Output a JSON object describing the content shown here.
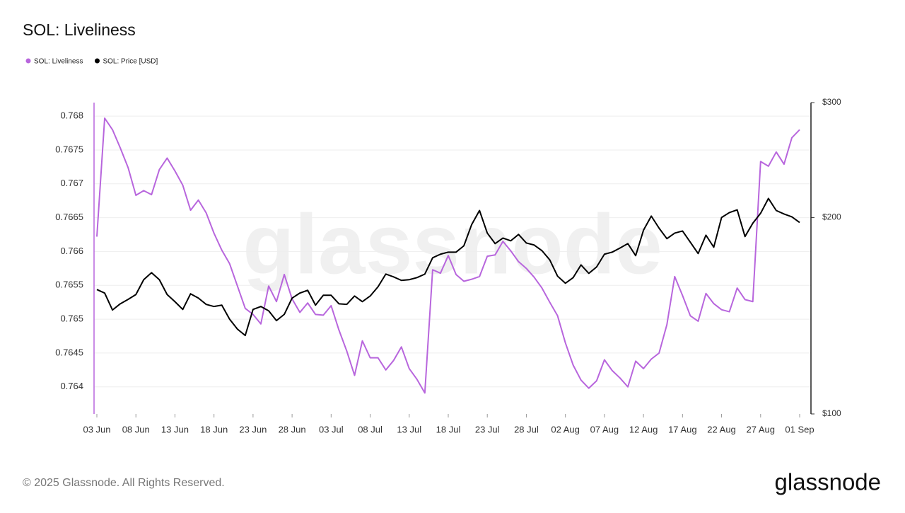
{
  "chart_data": {
    "type": "line",
    "title": "SOL: Liveliness",
    "watermark": "glassnode",
    "footer": "© 2025 Glassnode. All Rights Reserved.",
    "logo": "glassnode",
    "categories": [
      "03 Jun",
      null,
      null,
      null,
      null,
      "08 Jun",
      null,
      null,
      null,
      null,
      "13 Jun",
      null,
      null,
      null,
      null,
      "18 Jun",
      null,
      null,
      null,
      null,
      "23 Jun",
      null,
      null,
      null,
      null,
      "28 Jun",
      null,
      null,
      null,
      null,
      "03 Jul",
      null,
      null,
      null,
      null,
      "08 Jul",
      null,
      null,
      null,
      null,
      "13 Jul",
      null,
      null,
      null,
      null,
      "18 Jul",
      null,
      null,
      null,
      null,
      "23 Jul",
      null,
      null,
      null,
      null,
      "28 Jul",
      null,
      null,
      null,
      null,
      "02 Aug",
      null,
      null,
      null,
      null,
      "07 Aug",
      null,
      null,
      null,
      null,
      "12 Aug",
      null,
      null,
      null,
      null,
      "17 Aug",
      null,
      null,
      null,
      null,
      "22 Aug",
      null,
      null,
      null,
      null,
      "27 Aug",
      null,
      null,
      null,
      null,
      "01 Sep"
    ],
    "series": [
      {
        "name": "SOL: Liveliness",
        "color": "#b866dd",
        "axis": "y",
        "values": [
          0.76622,
          0.76797,
          0.7678,
          0.76753,
          0.76724,
          0.76683,
          0.7669,
          0.76684,
          0.76721,
          0.76738,
          0.76719,
          0.76698,
          0.76661,
          0.76676,
          0.76657,
          0.76627,
          0.76602,
          0.76582,
          0.76549,
          0.76516,
          0.76507,
          0.76493,
          0.76549,
          0.76526,
          0.76566,
          0.7653,
          0.7651,
          0.76524,
          0.76507,
          0.76506,
          0.7652,
          0.76484,
          0.76453,
          0.76417,
          0.76468,
          0.76443,
          0.76443,
          0.76425,
          0.76439,
          0.76459,
          0.76427,
          0.76411,
          0.76391,
          0.76573,
          0.76568,
          0.76594,
          0.76566,
          0.76556,
          0.76559,
          0.76563,
          0.76593,
          0.76595,
          0.76615,
          0.76601,
          0.76585,
          0.76575,
          0.76562,
          0.76546,
          0.76525,
          0.76505,
          0.76465,
          0.76432,
          0.7641,
          0.76398,
          0.76409,
          0.7644,
          0.76424,
          0.76413,
          0.764,
          0.76438,
          0.76427,
          0.76441,
          0.7645,
          0.76492,
          0.76563,
          0.76535,
          0.76505,
          0.76497,
          0.76538,
          0.76523,
          0.76514,
          0.76511,
          0.76546,
          0.76529,
          0.76526,
          0.76733,
          0.76726,
          0.76747,
          0.76729,
          0.76768,
          0.7678
        ]
      },
      {
        "name": "SOL: Price [USD]",
        "color": "#000000",
        "axis": "y2",
        "values": [
          155.1,
          153.2,
          144.3,
          147.5,
          149.8,
          152.4,
          160.6,
          164.6,
          160.6,
          152.4,
          148.6,
          144.6,
          152.8,
          150.5,
          147.2,
          146.1,
          146.8,
          139.7,
          134.9,
          131.9,
          144.6,
          146.1,
          143.9,
          139.0,
          142.1,
          150.5,
          153.2,
          154.7,
          146.8,
          152.0,
          152.0,
          147.5,
          147.2,
          151.6,
          148.6,
          151.6,
          156.6,
          163.8,
          162.2,
          160.2,
          160.6,
          161.8,
          163.8,
          173.5,
          175.7,
          177.0,
          177.0,
          181.0,
          195.1,
          205.0,
          189.3,
          182.4,
          186.0,
          184.2,
          188.4,
          182.8,
          181.5,
          177.9,
          172.2,
          162.6,
          158.6,
          161.8,
          169.2,
          164.2,
          168.0,
          175.7,
          177.0,
          179.6,
          182.4,
          174.8,
          191.2,
          201.0,
          192.6,
          185.6,
          189.3,
          190.7,
          183.3,
          176.1,
          187.9,
          180.1,
          200.0,
          203.5,
          205.5,
          187.0,
          196.0,
          203.0,
          213.9,
          205.0,
          202.5,
          200.5,
          196.5
        ]
      }
    ],
    "ylim": [
      0.7636,
      0.7682
    ],
    "yticks": [
      0.764,
      0.7645,
      0.765,
      0.7655,
      0.766,
      0.7665,
      0.767,
      0.7675,
      0.768
    ],
    "y2lim": [
      100,
      300
    ],
    "y2scale": "log",
    "y2ticks": [
      {
        "value": 100,
        "label": "$100"
      },
      {
        "value": 200,
        "label": "$200"
      },
      {
        "value": 300,
        "label": "$300"
      }
    ],
    "grid": true,
    "legend": "top-left"
  }
}
